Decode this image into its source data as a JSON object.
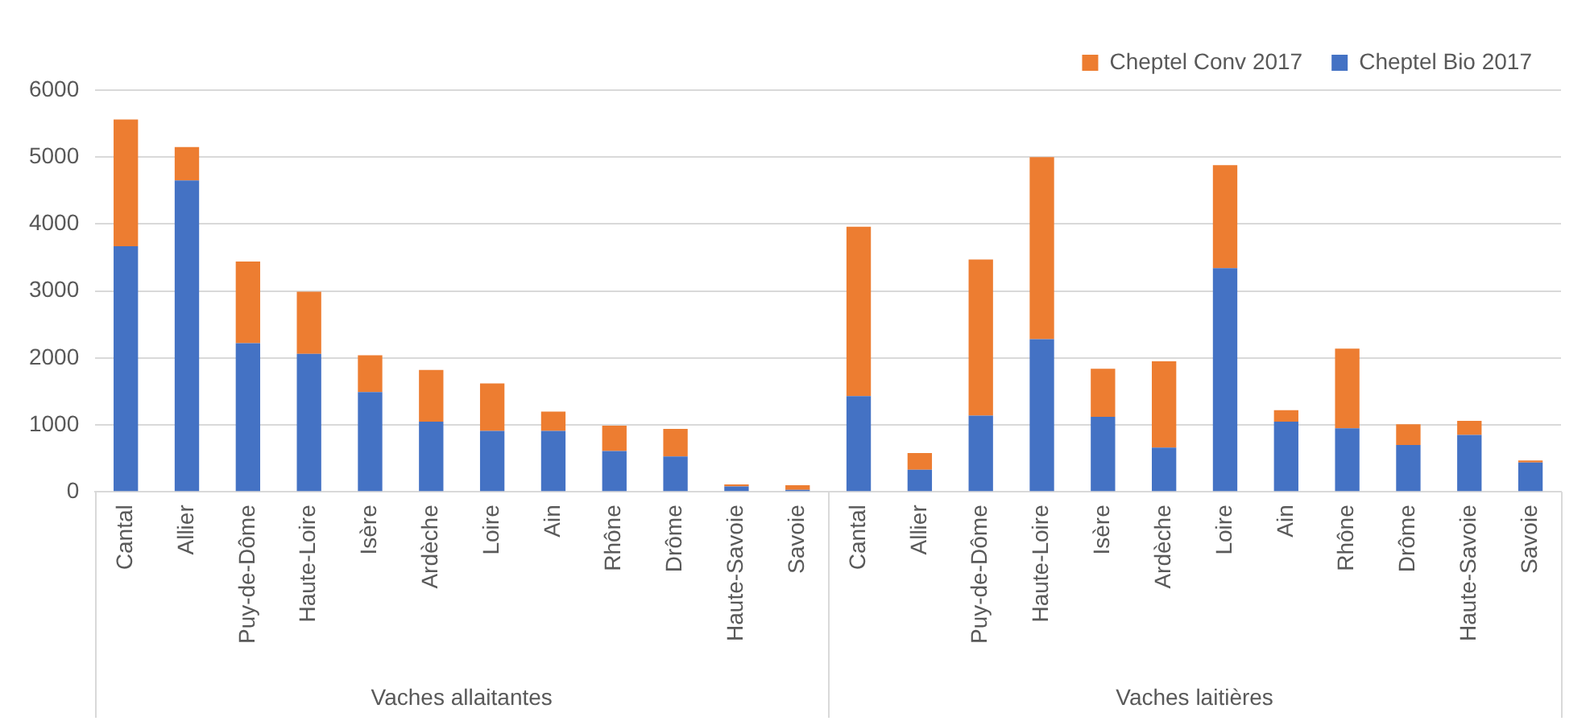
{
  "chart_data": {
    "type": "bar",
    "stacked": true,
    "categories": [
      "Cantal",
      "Allier",
      "Puy-de-Dôme",
      "Haute-Loire",
      "Isère",
      "Ardèche",
      "Loire",
      "Ain",
      "Rhône",
      "Drôme",
      "Haute-Savoie",
      "Savoie",
      "Cantal",
      "Allier",
      "Puy-de-Dôme",
      "Haute-Loire",
      "Isère",
      "Ardèche",
      "Loire",
      "Ain",
      "Rhône",
      "Drôme",
      "Haute-Savoie",
      "Savoie"
    ],
    "series": [
      {
        "name": "Cheptel Bio 2017",
        "color": "#4472c4",
        "values": [
          3670,
          4650,
          2220,
          2060,
          1490,
          1050,
          910,
          910,
          610,
          530,
          80,
          30,
          1430,
          330,
          1140,
          2280,
          1120,
          660,
          3340,
          1050,
          950,
          700,
          850,
          440
        ]
      },
      {
        "name": "Cheptel Conv 2017",
        "color": "#ed7d31",
        "values": [
          1890,
          500,
          1220,
          930,
          550,
          770,
          710,
          290,
          380,
          410,
          30,
          70,
          2530,
          250,
          2330,
          2720,
          720,
          1290,
          1540,
          170,
          1190,
          310,
          210,
          30
        ]
      }
    ],
    "ylim": [
      0,
      6000
    ],
    "yticks": [
      0,
      1000,
      2000,
      3000,
      4000,
      5000,
      6000
    ],
    "grid": "y",
    "legend": "top right",
    "annotations": [
      "Vaches allaitantes",
      "Vaches laitières"
    ]
  }
}
